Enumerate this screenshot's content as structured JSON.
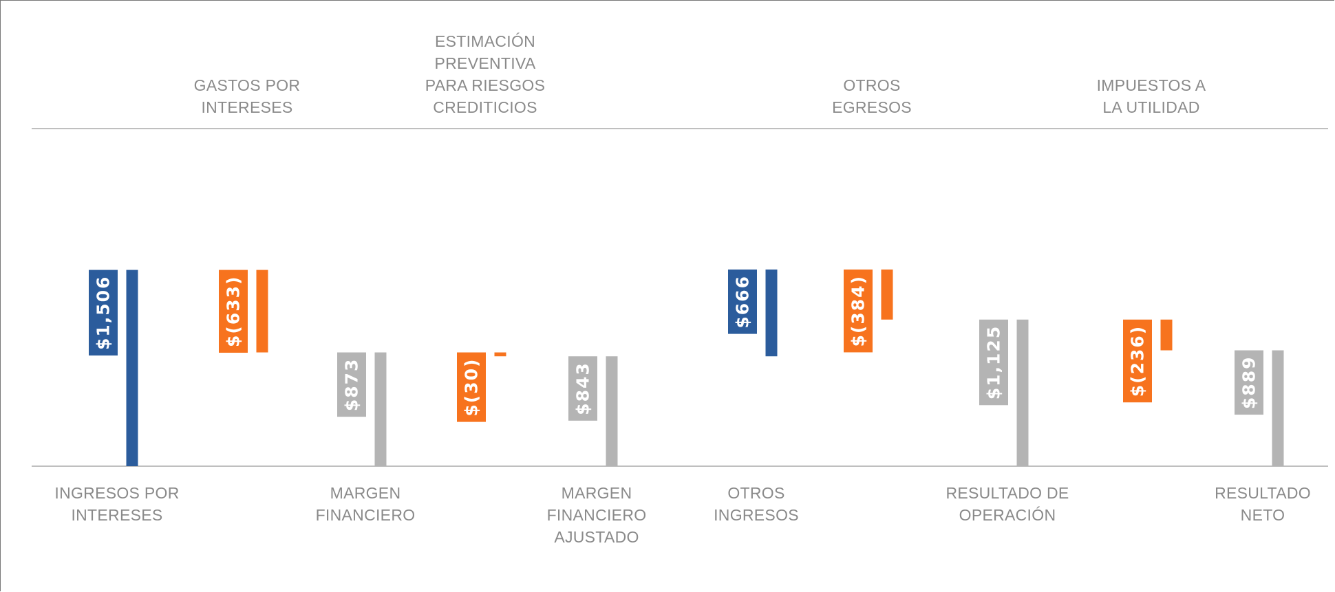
{
  "chart_data": {
    "type": "waterfall",
    "categories": [
      "INGRESOS POR\nINTERESES",
      "GASTOS POR\nINTERESES",
      "MARGEN\nFINANCIERO",
      "ESTIMACIÓN\nPREVENTIVA\nPARA RIESGOS\nCREDITICIOS",
      "MARGEN\nFINANCIERO\nAJUSTADO",
      "OTROS\nINGRESOS",
      "OTROS\nEGRESOS",
      "RESULTADO DE\nOPERACIÓN",
      "IMPUESTOS A\nLA UTILIDAD",
      "RESULTADO\nNETO"
    ],
    "values": [
      1506,
      -633,
      873,
      -30,
      843,
      666,
      -384,
      1125,
      -236,
      889
    ],
    "value_labels": [
      "$1,506",
      "$(633)",
      "$873",
      "$(30)",
      "$843",
      "$666",
      "$(384)",
      "$1,125",
      "$(236)",
      "$889"
    ],
    "measure": [
      "relative",
      "relative",
      "total",
      "relative",
      "total",
      "relative",
      "relative",
      "total",
      "relative",
      "total"
    ],
    "colors": {
      "increase": "#2b5c9c",
      "decrease": "#f7731e",
      "total": "#b4b4b4"
    }
  }
}
